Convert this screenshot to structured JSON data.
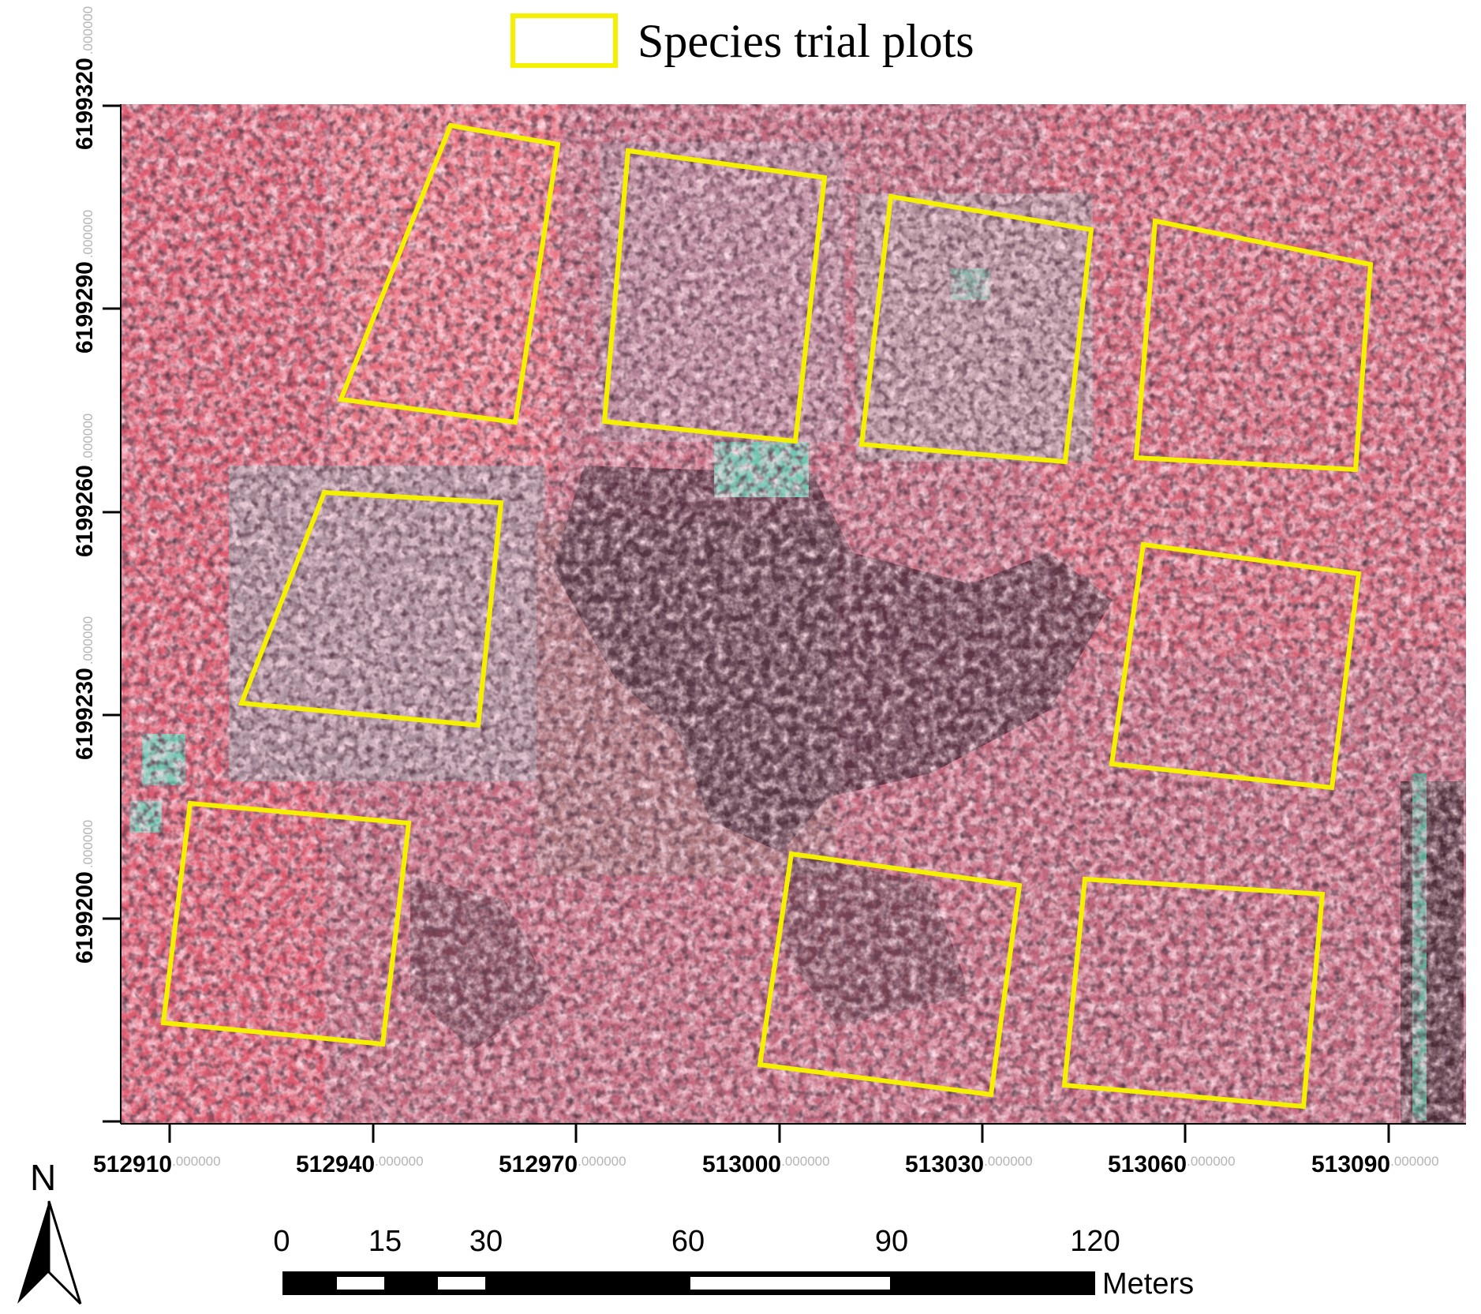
{
  "legend": {
    "label": "Species trial plots",
    "swatch_color": "#f5f000"
  },
  "north_arrow": {
    "label": "N",
    "icon": "north-arrow-icon"
  },
  "y_axis": {
    "ticks": [
      {
        "main": "6199320",
        "suffix": ".000000"
      },
      {
        "main": "6199290",
        "suffix": ".000000"
      },
      {
        "main": "6199260",
        "suffix": ".000000"
      },
      {
        "main": "6199230",
        "suffix": ".000000"
      },
      {
        "main": "6199200",
        "suffix": ".000000"
      }
    ]
  },
  "x_axis": {
    "ticks": [
      {
        "main": "512910",
        "suffix": ".000000"
      },
      {
        "main": "512940",
        "suffix": ".000000"
      },
      {
        "main": "512970",
        "suffix": ".000000"
      },
      {
        "main": "513000",
        "suffix": ".000000"
      },
      {
        "main": "513030",
        "suffix": ".000000"
      },
      {
        "main": "513060",
        "suffix": ".000000"
      },
      {
        "main": "513090",
        "suffix": ".000000"
      }
    ]
  },
  "scale_bar": {
    "labels": [
      "0",
      "15",
      "30",
      "60",
      "90",
      "120"
    ],
    "unit": "Meters"
  },
  "map": {
    "image_type": "color-infrared aerial orthophoto",
    "plot_outline_color": "#f5f000",
    "plot_count": 9
  }
}
